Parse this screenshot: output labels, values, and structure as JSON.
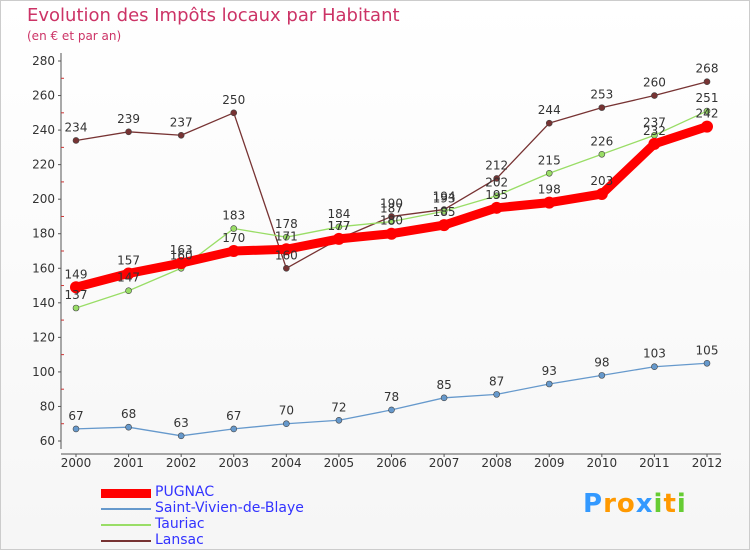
{
  "chart_data": {
    "type": "line",
    "title": "Evolution des Impôts locaux par Habitant",
    "subtitle": "(en € et par an)",
    "x": [
      "2000",
      "2001",
      "2002",
      "2003",
      "2004",
      "2005",
      "2006",
      "2007",
      "2008",
      "2009",
      "2010",
      "2011",
      "2012"
    ],
    "ylim": [
      60,
      280
    ],
    "yticks": [
      60,
      80,
      100,
      120,
      140,
      160,
      180,
      200,
      220,
      240,
      260,
      280
    ],
    "series": [
      {
        "name": "PUGNAC",
        "color": "#ff0000",
        "values": [
          149,
          157,
          163,
          170,
          171,
          177,
          180,
          185,
          195,
          198,
          203,
          232,
          242
        ],
        "labels": [
          "149",
          "157",
          "163",
          "170",
          "171",
          "177",
          "180",
          "185",
          "195",
          "198",
          "203",
          "232",
          "242"
        ]
      },
      {
        "name": "Saint-Vivien-de-Blaye",
        "color": "#6699cc",
        "values": [
          67,
          68,
          63,
          67,
          70,
          72,
          78,
          85,
          87,
          93,
          98,
          103,
          105
        ],
        "labels": [
          "67",
          "68",
          "63",
          "67",
          "70",
          "72",
          "78",
          "85",
          "87",
          "93",
          "98",
          "103",
          "105"
        ]
      },
      {
        "name": "Tauriac",
        "color": "#99dd66",
        "values": [
          137,
          147,
          160,
          183,
          178,
          184,
          187,
          193,
          202,
          215,
          226,
          237,
          251
        ],
        "labels": [
          "137",
          "147",
          "160",
          "183",
          "178",
          "184",
          "187",
          "193",
          "202",
          "215",
          "226",
          "237",
          "251"
        ]
      },
      {
        "name": "Lansac",
        "color": "#773333",
        "values": [
          234,
          239,
          237,
          250,
          160,
          177,
          190,
          194,
          212,
          244,
          253,
          260,
          268
        ],
        "labels": [
          "234",
          "239",
          "237",
          "250",
          "160",
          "177",
          "190",
          "194",
          "212",
          "244",
          "253",
          "260",
          "268"
        ]
      }
    ],
    "grid": false,
    "legend_position": "bottom-left"
  },
  "branding": {
    "letters": [
      "P",
      "r",
      "o",
      "x",
      "i",
      "t",
      "i"
    ],
    "colors": [
      "#3399ff",
      "#ff9900",
      "#ff9900",
      "#3399ff",
      "#66cc33",
      "#ff9900",
      "#66cc33"
    ]
  }
}
